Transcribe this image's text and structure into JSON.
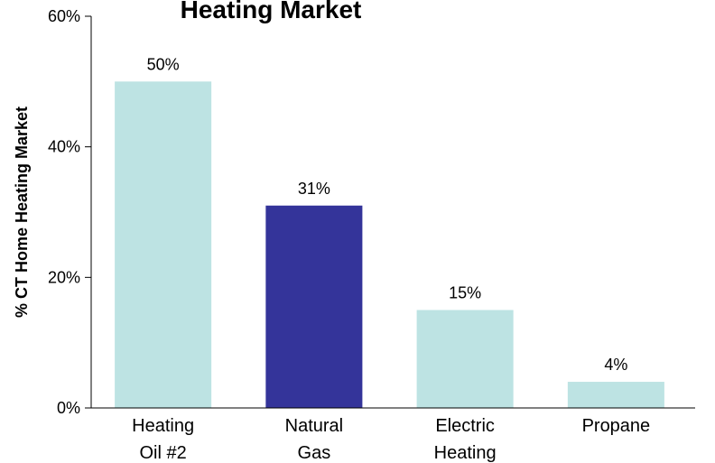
{
  "chart_data": {
    "type": "bar",
    "title": "Heating Market",
    "ylabel": "% CT Home Heating Market",
    "xlabel": "",
    "ylim": [
      0,
      60
    ],
    "yticks": [
      0,
      20,
      40,
      60
    ],
    "ytick_labels": [
      "0%",
      "20%",
      "40%",
      "60%"
    ],
    "categories": [
      [
        "Heating",
        "Oil #2"
      ],
      [
        "Natural",
        "Gas"
      ],
      [
        "Electric",
        "Heating"
      ],
      [
        "Propane"
      ]
    ],
    "values": [
      50,
      31,
      15,
      4
    ],
    "data_labels": [
      "50%",
      "31%",
      "15%",
      "4%"
    ],
    "bar_colors": [
      "#bde3e3",
      "#34349a",
      "#bde3e3",
      "#bde3e3"
    ],
    "grid": false,
    "legend": "none"
  }
}
